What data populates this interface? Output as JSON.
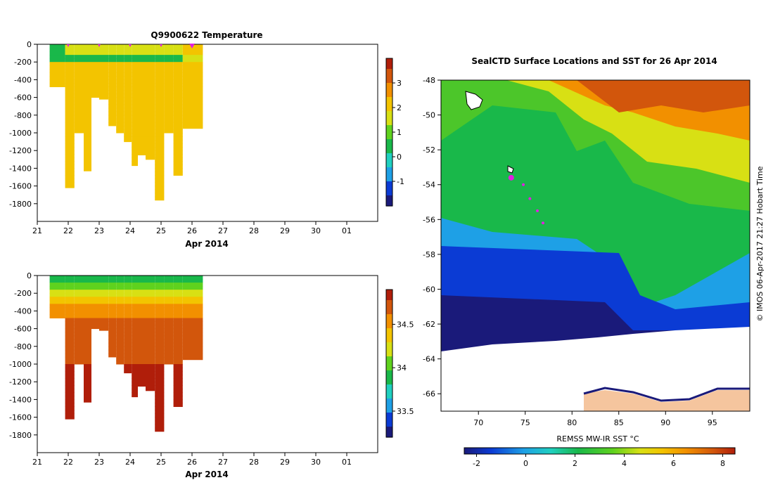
{
  "chart_data": [
    {
      "type": "heatmap",
      "title": "Q9900622  Temperature",
      "xlabel": "Apr 2014",
      "x_ticks": [
        "21",
        "22",
        "23",
        "24",
        "25",
        "26",
        "27",
        "28",
        "29",
        "30",
        "01"
      ],
      "y_ticks": [
        "0",
        "-200",
        "-400",
        "-600",
        "-800",
        "-1000",
        "-1200",
        "-1400",
        "-1600",
        "-1800"
      ],
      "ylim": [
        -2000,
        0
      ],
      "xlim": [
        21,
        32
      ],
      "colorbar_ticks": [
        "3",
        "2",
        "1",
        "0",
        "-1"
      ],
      "colorbar_range": [
        -2,
        4
      ],
      "profile_markers": [
        22,
        23,
        24,
        25,
        26
      ],
      "profiles": [
        {
          "day": 21.4,
          "width": 0.5,
          "max_depth": 480,
          "surface": 0.6,
          "mix": 1.2,
          "deep": 2.1
        },
        {
          "day": 21.9,
          "width": 0.3,
          "max_depth": 1620,
          "surface": 1.8,
          "mix": 1.0,
          "deep": 2.0
        },
        {
          "day": 22.2,
          "width": 0.3,
          "max_depth": 1000,
          "surface": 2.0,
          "mix": 1.0,
          "deep": 2.0
        },
        {
          "day": 22.5,
          "width": 0.25,
          "max_depth": 1430,
          "surface": 2.1,
          "mix": 1.0,
          "deep": 2.0
        },
        {
          "day": 22.75,
          "width": 0.25,
          "max_depth": 600,
          "surface": 2.2,
          "mix": 0.9,
          "deep": 2.0
        },
        {
          "day": 23.0,
          "width": 0.3,
          "max_depth": 620,
          "surface": 2.2,
          "mix": 0.9,
          "deep": 2.0
        },
        {
          "day": 23.3,
          "width": 0.25,
          "max_depth": 920,
          "surface": 2.3,
          "mix": 0.9,
          "deep": 2.0
        },
        {
          "day": 23.55,
          "width": 0.25,
          "max_depth": 1000,
          "surface": 2.2,
          "mix": 0.9,
          "deep": 2.0
        },
        {
          "day": 23.8,
          "width": 0.25,
          "max_depth": 1100,
          "surface": 2.2,
          "mix": 0.9,
          "deep": 2.0
        },
        {
          "day": 24.05,
          "width": 0.2,
          "max_depth": 1370,
          "surface": 2.2,
          "mix": 1.0,
          "deep": 2.0
        },
        {
          "day": 24.25,
          "width": 0.25,
          "max_depth": 1250,
          "surface": 2.1,
          "mix": 1.0,
          "deep": 2.0
        },
        {
          "day": 24.5,
          "width": 0.3,
          "max_depth": 1300,
          "surface": 2.1,
          "mix": 1.0,
          "deep": 2.0
        },
        {
          "day": 24.8,
          "width": 0.3,
          "max_depth": 1760,
          "surface": 2.1,
          "mix": 1.0,
          "deep": 2.0
        },
        {
          "day": 25.1,
          "width": 0.3,
          "max_depth": 1000,
          "surface": 2.1,
          "mix": 1.0,
          "deep": 2.0
        },
        {
          "day": 25.4,
          "width": 0.3,
          "max_depth": 1480,
          "surface": 2.2,
          "mix": 1.1,
          "deep": 2.1
        },
        {
          "day": 25.7,
          "width": 0.65,
          "max_depth": 950,
          "surface": 2.4,
          "mix": 2.2,
          "deep": 2.1
        }
      ]
    },
    {
      "type": "heatmap",
      "title": "",
      "xlabel": "Apr 2014",
      "x_ticks": [
        "21",
        "22",
        "23",
        "24",
        "25",
        "26",
        "27",
        "28",
        "29",
        "30",
        "01"
      ],
      "y_ticks": [
        "0",
        "-200",
        "-400",
        "-600",
        "-800",
        "-1000",
        "-1200",
        "-1400",
        "-1600",
        "-1800"
      ],
      "ylim": [
        -2000,
        0
      ],
      "xlim": [
        21,
        32
      ],
      "colorbar_ticks": [
        "34.5",
        "34",
        "33.5"
      ],
      "colorbar_range": [
        33.2,
        34.9
      ],
      "profiles": [
        {
          "day": 21.4,
          "width": 0.5,
          "max_depth": 480
        },
        {
          "day": 21.9,
          "width": 0.3,
          "max_depth": 1620
        },
        {
          "day": 22.2,
          "width": 0.3,
          "max_depth": 1000
        },
        {
          "day": 22.5,
          "width": 0.25,
          "max_depth": 1430
        },
        {
          "day": 22.75,
          "width": 0.25,
          "max_depth": 600
        },
        {
          "day": 23.0,
          "width": 0.3,
          "max_depth": 620
        },
        {
          "day": 23.3,
          "width": 0.25,
          "max_depth": 920
        },
        {
          "day": 23.55,
          "width": 0.25,
          "max_depth": 1000
        },
        {
          "day": 23.8,
          "width": 0.25,
          "max_depth": 1100
        },
        {
          "day": 24.05,
          "width": 0.2,
          "max_depth": 1370
        },
        {
          "day": 24.25,
          "width": 0.25,
          "max_depth": 1250
        },
        {
          "day": 24.5,
          "width": 0.3,
          "max_depth": 1300
        },
        {
          "day": 24.8,
          "width": 0.3,
          "max_depth": 1760
        },
        {
          "day": 25.1,
          "width": 0.3,
          "max_depth": 1000
        },
        {
          "day": 25.4,
          "width": 0.3,
          "max_depth": 1480
        },
        {
          "day": 25.7,
          "width": 0.65,
          "max_depth": 950
        }
      ]
    },
    {
      "type": "heatmap",
      "title": "SealCTD Surface Locations and SST for 26 Apr 2014",
      "xlabel": "",
      "x_ticks": [
        "70",
        "75",
        "80",
        "85",
        "90",
        "95"
      ],
      "y_ticks": [
        "-48",
        "-50",
        "-52",
        "-54",
        "-56",
        "-58",
        "-60",
        "-62",
        "-64",
        "-66"
      ],
      "xlim": [
        66,
        99
      ],
      "ylim": [
        -67,
        -48
      ],
      "colorbar_label": "REMSS MW-IR SST °C",
      "colorbar_ticks": [
        "-2",
        "0",
        "2",
        "4",
        "6",
        "8"
      ],
      "colorbar_range": [
        -2.5,
        8.5
      ],
      "seal_track": [
        [
          73.5,
          -53.6
        ],
        [
          74.8,
          -54.0
        ],
        [
          75.5,
          -54.8
        ],
        [
          76.3,
          -55.5
        ],
        [
          76.9,
          -56.2
        ]
      ],
      "credit": "© IMOS 06-Apr-2017 21:27 Hobart Time"
    }
  ],
  "colors": {
    "cmap": [
      "#1a1a7a",
      "#0b3bd4",
      "#1ea0e6",
      "#20d0c0",
      "#19b84a",
      "#5fd21e",
      "#d8e014",
      "#f3c400",
      "#f29000",
      "#d2560c",
      "#b01e0a"
    ]
  }
}
